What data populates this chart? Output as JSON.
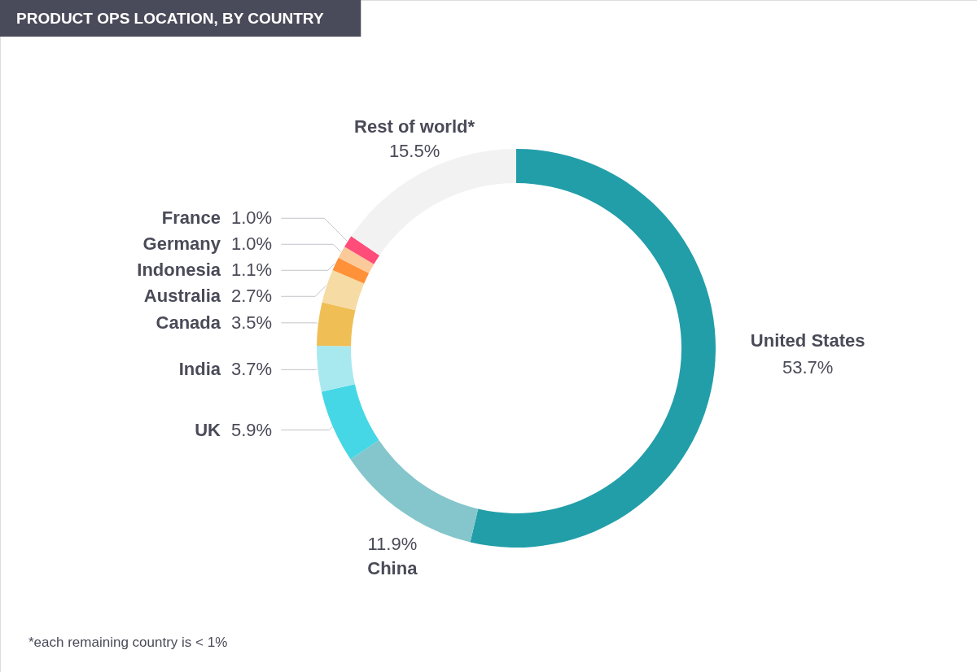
{
  "chart_data": {
    "type": "donut",
    "title": "PRODUCT OPS LOCATION, BY COUNTRY",
    "categories": [
      "United States",
      "China",
      "UK",
      "India",
      "Canada",
      "Australia",
      "Indonesia",
      "Germany",
      "France",
      "Rest of world*"
    ],
    "values": [
      53.7,
      11.9,
      5.9,
      3.7,
      3.5,
      2.7,
      1.1,
      1.0,
      1.0,
      15.5
    ],
    "value_labels": [
      "53.7%",
      "11.9%",
      "5.9%",
      "3.7%",
      "3.5%",
      "2.7%",
      "1.1%",
      "1.0%",
      "1.0%",
      "15.5%"
    ],
    "colors": [
      "#229ea9",
      "#84c6cb",
      "#45d7e5",
      "#a8e9f0",
      "#efbe55",
      "#f6dba4",
      "#ff9138",
      "#fcc99a",
      "#ff4c78",
      "#f2f2f2"
    ],
    "annotations": [
      "*each remaining country is < 1%"
    ]
  }
}
